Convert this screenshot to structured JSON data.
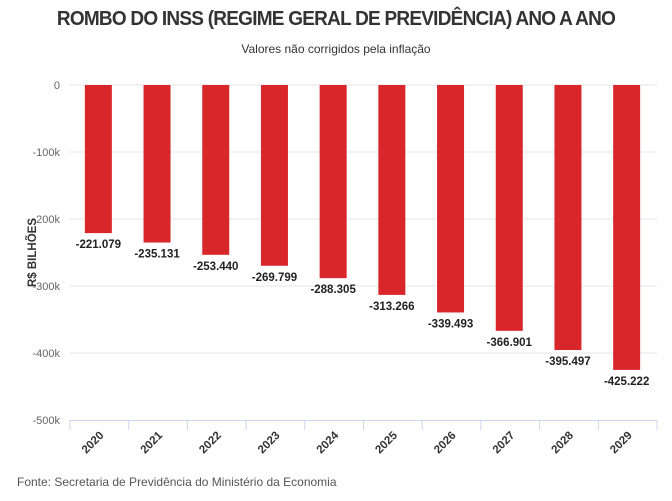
{
  "chart_data": {
    "type": "bar",
    "title": "ROMBO DO INSS (REGIME GERAL DE PREVIDÊNCIA) ANO A ANO",
    "subtitle": "Valores não corrigidos pela inflação",
    "ylabel": "R$ BILHÕES",
    "xlabel": "",
    "source": "Fonte: Secretaria de Previdência do Ministério da Economia",
    "categories": [
      "2020",
      "2021",
      "2022",
      "2023",
      "2024",
      "2025",
      "2026",
      "2027",
      "2028",
      "2029"
    ],
    "values": [
      -221.079,
      -235.131,
      -253.44,
      -269.799,
      -288.305,
      -313.266,
      -339.493,
      -366.901,
      -395.497,
      -425.222
    ],
    "data_labels": [
      "-221.079",
      "-235.131",
      "-253.440",
      "-269.799",
      "-288.305",
      "-313.266",
      "-339.493",
      "-366.901",
      "-395.497",
      "-425.222"
    ],
    "yticks": [
      0,
      -100,
      -200,
      -300,
      -400,
      -500
    ],
    "ytick_labels": [
      "0",
      "-100k",
      "-200k",
      "-300k",
      "-400k",
      "-500k"
    ],
    "ylim": [
      -500,
      0
    ],
    "grid": true,
    "bar_color": "#d9262a"
  }
}
